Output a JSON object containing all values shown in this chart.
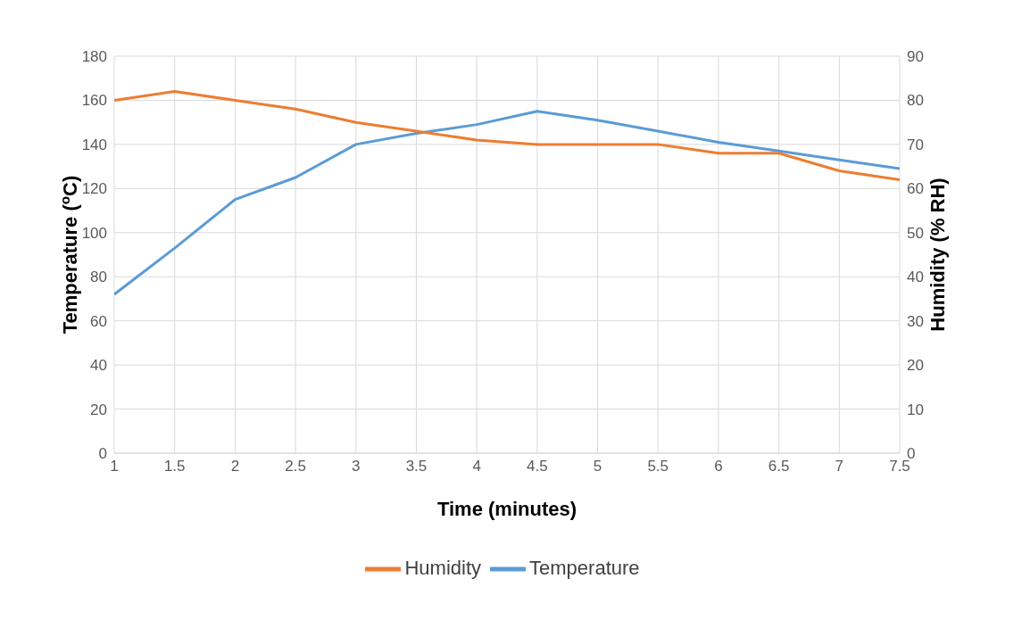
{
  "chart_data": {
    "type": "line",
    "xlabel": "Time (minutes)",
    "ylabel": "Temperature  ($^{o}$C)",
    "y2label": "Humidity  (% RH)",
    "x": [
      1,
      1.5,
      2,
      2.5,
      3,
      3.5,
      4,
      4.5,
      5,
      5.5,
      6,
      6.5,
      7,
      7.5
    ],
    "xlim": [
      1,
      7.5
    ],
    "xticks": [
      1,
      1.5,
      2,
      2.5,
      3,
      3.5,
      4,
      4.5,
      5,
      5.5,
      6,
      6.5,
      7,
      7.5
    ],
    "ylim": [
      0,
      180
    ],
    "yticks": [
      0,
      20,
      40,
      60,
      80,
      100,
      120,
      140,
      160,
      180
    ],
    "y2lim": [
      0,
      90
    ],
    "y2ticks": [
      0,
      10,
      20,
      30,
      40,
      50,
      60,
      70,
      80,
      90
    ],
    "series": [
      {
        "name": "Temperature",
        "color": "#5b9bd5",
        "values": [
          72,
          93,
          115,
          125,
          140,
          145,
          149,
          155,
          151,
          146,
          141,
          137,
          133,
          129
        ]
      },
      {
        "name": "Humidity",
        "color": "#ed7d31",
        "axis": "y2",
        "values": [
          80,
          82,
          80,
          78,
          75,
          73,
          71,
          70,
          70,
          70,
          68,
          68,
          64,
          62
        ]
      }
    ],
    "grid": true,
    "legend": "bottom",
    "marker": "none",
    "line_style": "solid"
  }
}
